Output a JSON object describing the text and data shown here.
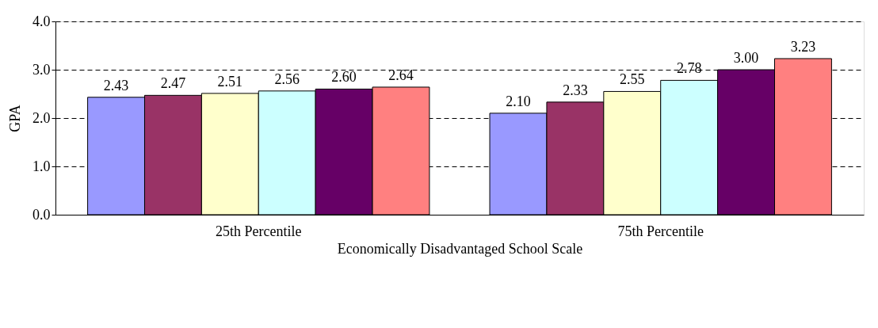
{
  "chart_data": {
    "type": "bar",
    "xlabel": "Economically Disadvantaged School Scale",
    "ylabel": "GPA",
    "categories": [
      "25th Percentile",
      "75th Percentile"
    ],
    "series": [
      {
        "color": "#9999ff",
        "values": [
          2.43,
          2.1
        ],
        "value_labels": [
          "2.43",
          "2.10"
        ]
      },
      {
        "color": "#993366",
        "values": [
          2.47,
          2.33
        ],
        "value_labels": [
          "2.47",
          "2.33"
        ]
      },
      {
        "color": "#ffffcc",
        "values": [
          2.51,
          2.55
        ],
        "value_labels": [
          "2.51",
          "2.55"
        ]
      },
      {
        "color": "#ccffff",
        "values": [
          2.56,
          2.78
        ],
        "value_labels": [
          "2.56",
          "2.78"
        ]
      },
      {
        "color": "#660066",
        "values": [
          2.6,
          3.0
        ],
        "value_labels": [
          "2.60",
          "3.00"
        ]
      },
      {
        "color": "#ff8080",
        "values": [
          2.64,
          3.23
        ],
        "value_labels": [
          "2.64",
          "3.23"
        ]
      }
    ],
    "ylim": [
      0,
      4
    ],
    "yticks": [
      {
        "value": 0,
        "label": "0.0"
      },
      {
        "value": 1,
        "label": "1.0"
      },
      {
        "value": 2,
        "label": "2.0"
      },
      {
        "value": 3,
        "label": "3.0"
      },
      {
        "value": 4,
        "label": "4.0"
      }
    ],
    "grid": "y"
  }
}
